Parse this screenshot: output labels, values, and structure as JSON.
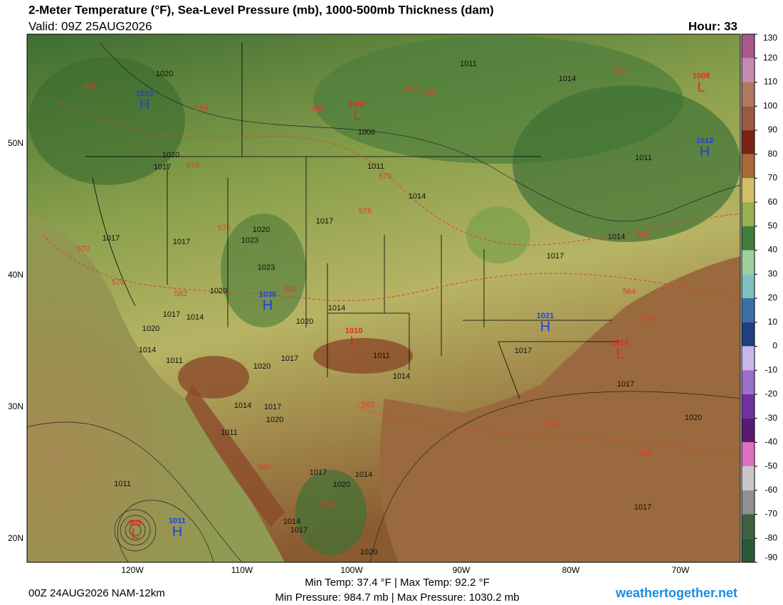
{
  "header": {
    "title": "2-Meter Temperature (°F), Sea-Level Pressure (mb), 1000-500mb Thickness (dam)",
    "valid": "Valid: 09Z 25AUG2026",
    "hour": "Hour: 33"
  },
  "map": {
    "lat_labels": [
      "50N",
      "40N",
      "30N",
      "20N"
    ],
    "lon_labels": [
      "120W",
      "110W",
      "100W",
      "90W",
      "80W",
      "70W"
    ],
    "highs": [
      {
        "letter": "H",
        "pressure": "1023"
      },
      {
        "letter": "H",
        "pressure": "1030"
      },
      {
        "letter": "H",
        "pressure": "1021"
      },
      {
        "letter": "H",
        "pressure": "1012"
      },
      {
        "letter": "H",
        "pressure": "1011"
      }
    ],
    "lows": [
      {
        "letter": "L",
        "pressure": "1007"
      },
      {
        "letter": "L",
        "pressure": "1008"
      },
      {
        "letter": "L",
        "pressure": "1010"
      },
      {
        "letter": "L",
        "pressure": "1016"
      },
      {
        "letter": "L",
        "pressure": "985"
      }
    ],
    "isobar_labels": [
      "1020",
      "1011",
      "1014",
      "1008",
      "1011",
      "1020",
      "1017",
      "1011",
      "1014",
      "1017",
      "1017",
      "1020",
      "1023",
      "1017",
      "1014",
      "1017",
      "1023",
      "1020",
      "1014",
      "1017",
      "1014",
      "1020",
      "1020",
      "1014",
      "1011",
      "1011",
      "1017",
      "1020",
      "1014",
      "1017",
      "1017",
      "1014",
      "1017",
      "1020",
      "1011",
      "1020",
      "1017",
      "1014",
      "1020",
      "1011",
      "1014",
      "1017",
      "1020",
      "1017"
    ],
    "thickness_labels": [
      "564",
      "564",
      "564",
      "564",
      "564",
      "558",
      "570",
      "570",
      "576",
      "576",
      "570",
      "576",
      "582",
      "582",
      "582",
      "576",
      "570",
      "564",
      "558",
      "582",
      "576",
      "558"
    ]
  },
  "colorbar": {
    "ticks": [
      130,
      120,
      110,
      100,
      90,
      80,
      70,
      60,
      50,
      40,
      30,
      20,
      10,
      0,
      -10,
      -20,
      -30,
      -40,
      -50,
      -60,
      -70,
      -80,
      -90
    ]
  },
  "footer": {
    "model": "00Z 24AUG2026 NAM-12km",
    "stats": [
      "Min Temp:  37.4 °F | Max Temp:  92.2 °F",
      "Min Pressure: 984.7 mb | Max Pressure: 1030.2 mb"
    ],
    "site": "weathertogether.net"
  }
}
